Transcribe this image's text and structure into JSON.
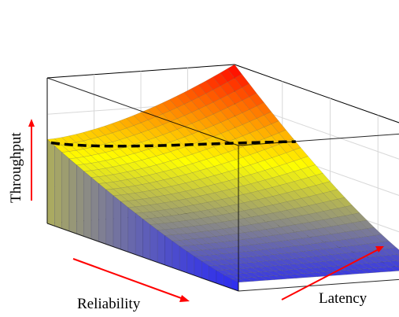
{
  "chart_data": {
    "type": "surface",
    "title": "",
    "xlabel": "Reliability",
    "ylabel": "Latency",
    "zlabel": "Throughput",
    "tick_labels": "none",
    "grid": true,
    "colormap": [
      "#2020ff",
      "#ffff00",
      "#ff0000"
    ],
    "axis_arrow_color": "#ff0000",
    "surface_shape": "throughput falls as reliability rises, convex along latency",
    "dashed_curve": {
      "color": "#000000",
      "style": "dashed",
      "on_surface": true
    }
  }
}
